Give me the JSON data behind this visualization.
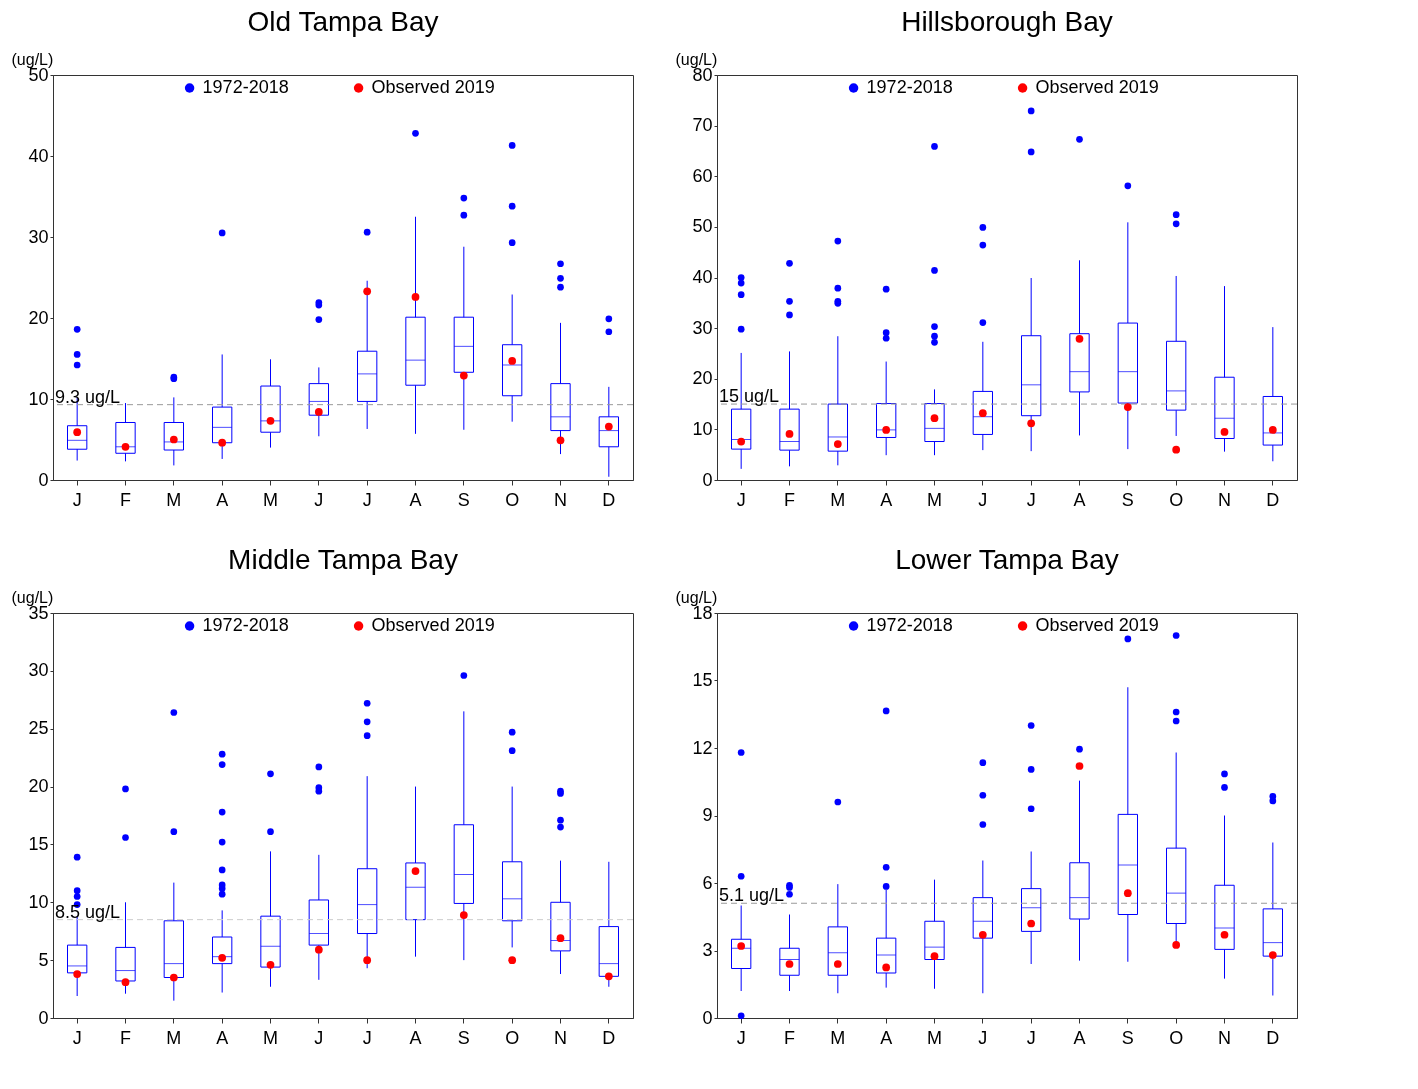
{
  "chart_data": [
    {
      "type": "box",
      "title": "Old Tampa Bay",
      "ylabel": "(ug/L)",
      "categories": [
        "J",
        "F",
        "M",
        "A",
        "M",
        "J",
        "J",
        "A",
        "S",
        "O",
        "N",
        "D"
      ],
      "ylim": [
        0,
        50
      ],
      "yticks": [
        0,
        10,
        20,
        30,
        40,
        50
      ],
      "grid": false,
      "legend": "top",
      "marker": "circle",
      "series": [
        {
          "name": "1972-2018",
          "type": "box",
          "color": "#0000ff",
          "boxes": [
            {
              "low": 2.4,
              "q1": 3.8,
              "median": 4.9,
              "q3": 6.7,
              "high": 10.2,
              "outliers": [
                14.2,
                15.5,
                18.6
              ]
            },
            {
              "low": 2.3,
              "q1": 3.3,
              "median": 4.1,
              "q3": 7.1,
              "high": 9.5
            },
            {
              "low": 1.8,
              "q1": 3.7,
              "median": 4.7,
              "q3": 7.1,
              "high": 10.2,
              "outliers": [
                12.5,
                12.7
              ]
            },
            {
              "low": 2.6,
              "q1": 4.6,
              "median": 6.5,
              "q3": 9.0,
              "high": 15.5,
              "outliers": [
                30.5
              ]
            },
            {
              "low": 4.0,
              "q1": 5.9,
              "median": 7.3,
              "q3": 11.6,
              "high": 14.9
            },
            {
              "low": 5.4,
              "q1": 8.0,
              "median": 9.7,
              "q3": 11.9,
              "high": 13.9,
              "outliers": [
                19.8,
                21.6,
                21.9
              ]
            },
            {
              "low": 6.3,
              "q1": 9.7,
              "median": 13.1,
              "q3": 15.9,
              "high": 24.6,
              "outliers": [
                30.6
              ]
            },
            {
              "low": 5.7,
              "q1": 11.7,
              "median": 14.8,
              "q3": 20.1,
              "high": 32.5,
              "outliers": [
                42.8
              ]
            },
            {
              "low": 6.2,
              "q1": 13.3,
              "median": 16.5,
              "q3": 20.1,
              "high": 28.8,
              "outliers": [
                32.7,
                34.8
              ]
            },
            {
              "low": 7.2,
              "q1": 10.4,
              "median": 14.2,
              "q3": 16.7,
              "high": 22.9,
              "outliers": [
                29.3,
                33.8,
                41.3
              ]
            },
            {
              "low": 3.2,
              "q1": 6.1,
              "median": 7.8,
              "q3": 11.9,
              "high": 19.4,
              "outliers": [
                23.8,
                24.9,
                26.7
              ]
            },
            {
              "low": 0.4,
              "q1": 4.1,
              "median": 6.1,
              "q3": 7.8,
              "high": 11.5,
              "outliers": [
                18.3,
                19.9
              ]
            }
          ]
        },
        {
          "name": "Observed 2019",
          "type": "scatter",
          "color": "#ff0000",
          "values": [
            5.9,
            4.1,
            5.0,
            4.6,
            7.3,
            8.4,
            23.3,
            22.6,
            12.9,
            14.7,
            4.9,
            6.6
          ]
        }
      ],
      "ref_lines": [
        {
          "axis": "y",
          "value": 9.3,
          "label": "9.3 ug/L",
          "color": "#999999",
          "line_style": "dashed"
        }
      ]
    },
    {
      "type": "box",
      "title": "Hillsborough Bay",
      "ylabel": "(ug/L)",
      "categories": [
        "J",
        "F",
        "M",
        "A",
        "M",
        "J",
        "J",
        "A",
        "S",
        "O",
        "N",
        "D"
      ],
      "ylim": [
        0,
        80
      ],
      "yticks": [
        0,
        10,
        20,
        30,
        40,
        50,
        60,
        70,
        80
      ],
      "grid": false,
      "legend": "top",
      "marker": "circle",
      "series": [
        {
          "name": "1972-2018",
          "type": "box",
          "color": "#0000ff",
          "boxes": [
            {
              "low": 2.2,
              "q1": 6.1,
              "median": 8.0,
              "q3": 14.0,
              "high": 25.1,
              "outliers": [
                29.8,
                36.6,
                38.9,
                40.0
              ]
            },
            {
              "low": 2.7,
              "q1": 5.9,
              "median": 7.6,
              "q3": 14.0,
              "high": 25.4,
              "outliers": [
                32.6,
                35.3,
                42.8
              ]
            },
            {
              "low": 2.9,
              "q1": 5.7,
              "median": 8.5,
              "q3": 15.0,
              "high": 28.4,
              "outliers": [
                34.9,
                35.3,
                37.9,
                47.2
              ]
            },
            {
              "low": 4.9,
              "q1": 8.4,
              "median": 9.9,
              "q3": 15.1,
              "high": 23.4,
              "outliers": [
                28.0,
                29.1,
                37.7
              ]
            },
            {
              "low": 4.9,
              "q1": 7.6,
              "median": 10.2,
              "q3": 15.1,
              "high": 17.9,
              "outliers": [
                27.2,
                28.4,
                30.3,
                41.4,
                65.9
              ]
            },
            {
              "low": 5.9,
              "q1": 9.0,
              "median": 12.5,
              "q3": 17.5,
              "high": 27.3,
              "outliers": [
                31.1,
                46.4,
                49.9
              ]
            },
            {
              "low": 5.7,
              "q1": 12.7,
              "median": 18.8,
              "q3": 28.5,
              "high": 39.9,
              "outliers": [
                64.8,
                72.9
              ]
            },
            {
              "low": 8.8,
              "q1": 17.4,
              "median": 21.4,
              "q3": 28.9,
              "high": 43.4,
              "outliers": [
                67.3
              ]
            },
            {
              "low": 6.1,
              "q1": 15.2,
              "median": 21.4,
              "q3": 31.0,
              "high": 50.9,
              "outliers": [
                58.1
              ]
            },
            {
              "low": 8.7,
              "q1": 13.8,
              "median": 17.6,
              "q3": 27.4,
              "high": 40.3,
              "outliers": [
                50.6,
                52.4
              ]
            },
            {
              "low": 5.6,
              "q1": 8.2,
              "median": 12.2,
              "q3": 20.3,
              "high": 38.3
            },
            {
              "low": 3.7,
              "q1": 6.9,
              "median": 9.3,
              "q3": 16.5,
              "high": 30.2
            }
          ]
        },
        {
          "name": "Observed 2019",
          "type": "scatter",
          "color": "#ff0000",
          "values": [
            7.6,
            9.1,
            7.1,
            9.9,
            12.2,
            13.2,
            11.2,
            27.9,
            14.4,
            6.0,
            9.5,
            9.9
          ]
        }
      ],
      "ref_lines": [
        {
          "axis": "y",
          "value": 15,
          "label": "15 ug/L",
          "color": "#999999",
          "line_style": "dashed"
        }
      ]
    },
    {
      "type": "box",
      "title": "Middle Tampa Bay",
      "ylabel": "(ug/L)",
      "categories": [
        "J",
        "F",
        "M",
        "A",
        "M",
        "J",
        "J",
        "A",
        "S",
        "O",
        "N",
        "D"
      ],
      "ylim": [
        0,
        35
      ],
      "yticks": [
        0,
        5,
        10,
        15,
        20,
        25,
        30,
        35
      ],
      "grid": false,
      "legend": "top",
      "marker": "circle",
      "series": [
        {
          "name": "1972-2018",
          "type": "box",
          "color": "#0000ff",
          "boxes": [
            {
              "low": 1.9,
              "q1": 3.9,
              "median": 4.5,
              "q3": 6.3,
              "high": 8.8,
              "outliers": [
                9.8,
                10.5,
                11.0,
                13.9
              ]
            },
            {
              "low": 2.1,
              "q1": 3.2,
              "median": 4.1,
              "q3": 6.1,
              "high": 10.0,
              "outliers": [
                15.6,
                19.8
              ]
            },
            {
              "low": 1.5,
              "q1": 3.5,
              "median": 4.7,
              "q3": 8.4,
              "high": 11.7,
              "outliers": [
                16.1,
                26.4
              ]
            },
            {
              "low": 2.2,
              "q1": 4.7,
              "median": 5.3,
              "q3": 7.0,
              "high": 9.3,
              "outliers": [
                10.7,
                11.2,
                11.5,
                12.8,
                15.2,
                17.8,
                21.9,
                22.8
              ]
            },
            {
              "low": 2.7,
              "q1": 4.4,
              "median": 6.2,
              "q3": 8.8,
              "high": 14.4,
              "outliers": [
                16.1,
                21.1
              ]
            },
            {
              "low": 3.3,
              "q1": 6.3,
              "median": 7.3,
              "q3": 10.2,
              "high": 14.1,
              "outliers": [
                19.6,
                19.9,
                21.7
              ]
            },
            {
              "low": 4.3,
              "q1": 7.3,
              "median": 9.8,
              "q3": 12.9,
              "high": 20.9,
              "outliers": [
                24.4,
                25.6,
                27.2
              ]
            },
            {
              "low": 5.3,
              "q1": 8.5,
              "median": 11.3,
              "q3": 13.4,
              "high": 20.0
            },
            {
              "low": 5.0,
              "q1": 9.9,
              "median": 12.4,
              "q3": 16.7,
              "high": 26.5,
              "outliers": [
                29.6
              ]
            },
            {
              "low": 6.1,
              "q1": 8.4,
              "median": 10.3,
              "q3": 13.5,
              "high": 20.0,
              "outliers": [
                23.1,
                24.7
              ]
            },
            {
              "low": 3.8,
              "q1": 5.8,
              "median": 6.7,
              "q3": 10.0,
              "high": 13.6,
              "outliers": [
                16.5,
                17.1,
                19.4,
                19.6
              ]
            },
            {
              "low": 2.7,
              "q1": 3.6,
              "median": 4.7,
              "q3": 7.9,
              "high": 13.5
            }
          ]
        },
        {
          "name": "Observed 2019",
          "type": "scatter",
          "color": "#ff0000",
          "values": [
            3.8,
            3.1,
            3.5,
            5.2,
            4.6,
            5.9,
            5.0,
            12.7,
            8.9,
            5.0,
            6.9,
            3.6
          ]
        }
      ],
      "ref_lines": [
        {
          "axis": "y",
          "value": 8.5,
          "label": "8.5 ug/L",
          "color": "#cccccc",
          "line_style": "dashed"
        }
      ]
    },
    {
      "type": "box",
      "title": "Lower Tampa Bay",
      "ylabel": "(ug/L)",
      "categories": [
        "J",
        "F",
        "M",
        "A",
        "M",
        "J",
        "J",
        "A",
        "S",
        "O",
        "N",
        "D"
      ],
      "ylim": [
        0,
        18
      ],
      "yticks": [
        0,
        3,
        6,
        9,
        12,
        15,
        18
      ],
      "grid": false,
      "legend": "top",
      "marker": "circle",
      "series": [
        {
          "name": "1972-2018",
          "type": "box",
          "color": "#0000ff",
          "boxes": [
            {
              "low": 1.2,
              "q1": 2.2,
              "median": 3.1,
              "q3": 3.5,
              "high": 5.0,
              "outliers": [
                0.1,
                6.3,
                11.8
              ]
            },
            {
              "low": 1.2,
              "q1": 1.9,
              "median": 2.6,
              "q3": 3.1,
              "high": 4.6,
              "outliers": [
                5.5,
                5.8,
                5.9
              ]
            },
            {
              "low": 1.1,
              "q1": 1.9,
              "median": 2.9,
              "q3": 4.05,
              "high": 5.95,
              "outliers": [
                9.6
              ]
            },
            {
              "low": 1.35,
              "q1": 2.0,
              "median": 2.8,
              "q3": 3.55,
              "high": 5.7,
              "outliers": [
                5.85,
                6.7,
                13.65
              ]
            },
            {
              "low": 1.3,
              "q1": 2.6,
              "median": 3.15,
              "q3": 4.3,
              "high": 6.15
            },
            {
              "low": 1.1,
              "q1": 3.55,
              "median": 4.3,
              "q3": 5.35,
              "high": 7.0,
              "outliers": [
                8.6,
                9.9,
                11.35
              ]
            },
            {
              "low": 2.4,
              "q1": 3.85,
              "median": 4.9,
              "q3": 5.75,
              "high": 7.4,
              "outliers": [
                9.3,
                11.05,
                13.0
              ]
            },
            {
              "low": 2.55,
              "q1": 4.4,
              "median": 5.35,
              "q3": 6.9,
              "high": 10.55,
              "outliers": [
                11.95
              ]
            },
            {
              "low": 2.5,
              "q1": 4.6,
              "median": 6.8,
              "q3": 9.05,
              "high": 14.7,
              "outliers": [
                16.85
              ]
            },
            {
              "low": 3.2,
              "q1": 4.2,
              "median": 5.55,
              "q3": 7.55,
              "high": 11.8,
              "outliers": [
                13.2,
                13.6,
                17.0
              ]
            },
            {
              "low": 1.75,
              "q1": 3.05,
              "median": 4.0,
              "q3": 5.9,
              "high": 9.0,
              "outliers": [
                10.25,
                10.85
              ]
            },
            {
              "low": 1.0,
              "q1": 2.75,
              "median": 3.35,
              "q3": 4.85,
              "high": 7.8,
              "outliers": [
                9.65,
                9.85
              ]
            }
          ]
        },
        {
          "name": "Observed 2019",
          "type": "scatter",
          "color": "#ff0000",
          "values": [
            3.2,
            2.4,
            2.4,
            2.25,
            2.75,
            3.7,
            4.2,
            11.2,
            5.55,
            3.25,
            3.7,
            2.8
          ]
        }
      ],
      "ref_lines": [
        {
          "axis": "y",
          "value": 5.1,
          "label": "5.1 ug/L",
          "color": "#999999",
          "line_style": "dashed"
        }
      ]
    }
  ]
}
